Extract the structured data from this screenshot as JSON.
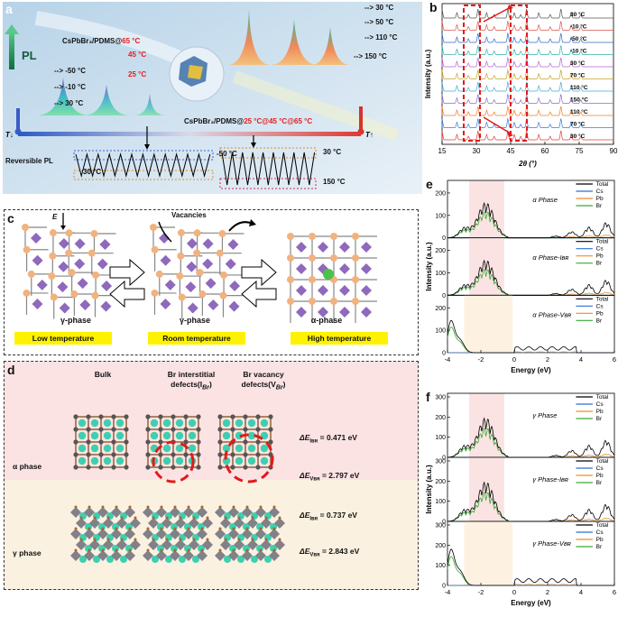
{
  "panel_labels": {
    "a": "a",
    "b": "b",
    "c": "c",
    "d": "d",
    "e": "e",
    "f": "f"
  },
  "panel_a": {
    "pl_label": "PL",
    "title_top": "CsPbBr₃/PDMS@",
    "title_top_temp": "65 °C",
    "temp_45": "45 °C",
    "temp_25": "25 °C",
    "left_temps": [
      "-50 °C",
      "-10 °C",
      "30 °C"
    ],
    "right_temps": [
      "30 °C",
      "50 °C",
      "110 °C",
      "150 °C"
    ],
    "cycle_title": "CsPbBr₃/PDMS@",
    "cycle_temps": [
      "25 °C",
      "@45 °C",
      "@65 °C"
    ],
    "t_left": "T↓",
    "t_right": "T↑",
    "reversible": "Reversible PL",
    "left_box_top": "-50 °C",
    "left_box_bottom": "30 °C",
    "right_box_top": "30 °C",
    "right_box_bottom": "150 °C"
  },
  "panel_b": {
    "ylabel": "Intensity (a.u.)",
    "xlabel": "2θ (°)",
    "xticks": [
      "15",
      "30",
      "45",
      "60",
      "75",
      "90"
    ],
    "temps": [
      "30 °C",
      "-10 °C",
      "-50 °C",
      "-10 °C",
      "30 °C",
      "70 °C",
      "110 °C",
      "150 °C",
      "110 °C",
      "70 °C",
      "30 °C"
    ],
    "colors": [
      "#e0403a",
      "#3a7bd5",
      "#f07c2b",
      "#8a6fc0",
      "#4aa8d6",
      "#c9a227",
      "#b565c8",
      "#2fb3a6",
      "#3069c9",
      "#d6554a",
      "#555555"
    ]
  },
  "panel_c": {
    "e_label": "E",
    "vacancies": "Vacancies",
    "phases": [
      "γ-phase",
      "γ-phase",
      "α-phase"
    ],
    "temps": [
      "Low temperature",
      "Room temperature",
      "High temperature"
    ]
  },
  "panel_d": {
    "col_bulk": "Bulk",
    "col_inter": "Br interstitial defects(Iʙʀ)",
    "col_inter_l1": "Br interstitial",
    "col_inter_l2": "defects(I",
    "col_inter_sub": "Br",
    "col_vac_l1": "Br vacancy",
    "col_vac_l2": "defects(V",
    "col_vac_sub": "Br",
    "alpha_phase": "α phase",
    "gamma_phase": "γ phase",
    "energies": [
      {
        "label": "ΔE",
        "sub": "Iʙʀ",
        "text": "ΔE_IBr = 0.471 eV",
        "value": "= 0.471 eV"
      },
      {
        "label": "ΔE",
        "sub": "Vʙʀ",
        "text": "ΔE_VBr = 2.797 eV",
        "value": "= 2.797 eV"
      },
      {
        "label": "ΔE",
        "sub": "Iʙʀ",
        "text": "ΔE_IBr = 0.737 eV",
        "value": "= 0.737 eV"
      },
      {
        "label": "ΔE",
        "sub": "Vʙʀ",
        "text": "ΔE_VBr = 2.843 eV",
        "value": "= 2.843 eV"
      }
    ]
  },
  "panel_e": {
    "ylabel": "Intensity (a.u.)",
    "xlabel": "Energy (eV)",
    "xticks": [
      "-4",
      "-2",
      "0",
      "2",
      "4",
      "6"
    ],
    "legend": [
      "Total",
      "Cs",
      "Pb",
      "Br"
    ],
    "legend_colors": [
      "#000000",
      "#2e6fd6",
      "#f28c28",
      "#3aa935"
    ],
    "subplots": [
      {
        "name": "α Phase",
        "yticks": [
          "0",
          "100",
          "200"
        ]
      },
      {
        "name": "α Phase-Iʙʀ",
        "yticks": [
          "0",
          "100",
          "200"
        ]
      },
      {
        "name": "α Phase-Vʙʀ",
        "yticks": [
          "0",
          "100",
          "200"
        ]
      }
    ]
  },
  "panel_f": {
    "ylabel": "Intensity (a.u.)",
    "xlabel": "Energy (eV)",
    "xticks": [
      "-4",
      "-2",
      "0",
      "2",
      "4",
      "6"
    ],
    "legend": [
      "Total",
      "Cs",
      "Pb",
      "Br"
    ],
    "subplots": [
      {
        "name": "γ Phase",
        "yticks": [
          "0",
          "100",
          "200",
          "300"
        ]
      },
      {
        "name": "γ Phase-Iʙʀ",
        "yticks": [
          "0",
          "100",
          "200",
          "300"
        ]
      },
      {
        "name": "γ Phase-Vʙʀ",
        "yticks": [
          "0",
          "100",
          "200",
          "300"
        ]
      }
    ]
  }
}
